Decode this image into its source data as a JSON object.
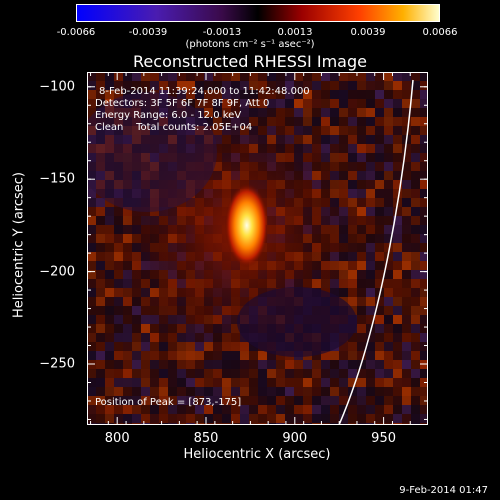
{
  "colorbar": {
    "ticks": [
      "-0.0066",
      "-0.0039",
      "-0.0013",
      "0.0013",
      "0.0039",
      "0.0066"
    ],
    "units": "(photons cm⁻² s⁻¹ asec⁻²)"
  },
  "header": {
    "time_range": "8-Feb-2014 11:39:24.000 to 11:42:48.000",
    "detectors": "Detectors: 3F 5F 6F 7F 8F 9F, Att 0",
    "energy": "Energy Range: 6.0 - 12.0 keV",
    "clean": "Clean    Total counts: 2.05E+04"
  },
  "peak_text": "Position of Peak = [873,-175]",
  "timestamp": "9-Feb-2014 01:47",
  "chart_data": {
    "type": "heatmap",
    "title": "Reconstructed RHESSI Image",
    "xlabel": "Heliocentric X (arcsec)",
    "ylabel": "Heliocentric Y (arcsec)",
    "xlim": [
      783,
      975
    ],
    "ylim": [
      -283,
      -92
    ],
    "xticks": [
      "800",
      "850",
      "900",
      "950"
    ],
    "yticks": [
      "-100",
      "-150",
      "-200",
      "-250"
    ],
    "peak": {
      "x": 873,
      "y": -175
    },
    "color_range": [
      -0.0066,
      0.0066
    ],
    "colors": {
      "background": "#000000",
      "axes": "#ffffff",
      "limb": "#ffffff"
    }
  }
}
